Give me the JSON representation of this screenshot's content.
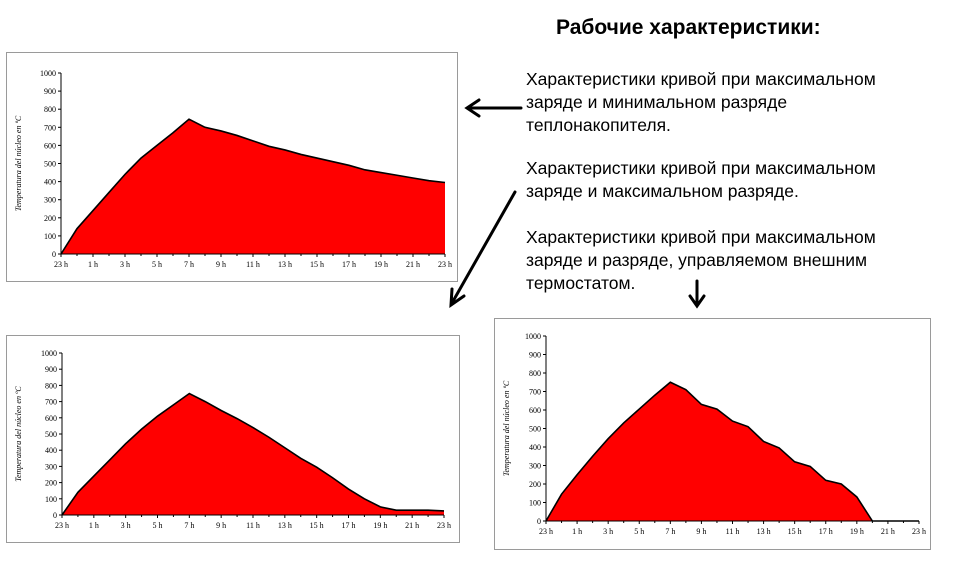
{
  "title": "Рабочие характеристики:",
  "descriptions": [
    "Характеристики кривой при максимальном заряде и минимальном разряде теплонакопителя.",
    "Характеристики кривой при максимальном заряде и максимальном разряде.",
    "Характеристики кривой при максимальном заряде и разряде, управляемом внешним термостатом."
  ],
  "chart_data": [
    {
      "type": "area",
      "ylabel": "Temperatura del núcleo en ºC",
      "ylim": [
        0,
        1000
      ],
      "yticks": [
        0,
        100,
        200,
        300,
        400,
        500,
        600,
        700,
        800,
        900,
        1000
      ],
      "xticks": [
        "23 h",
        "1 h",
        "3 h",
        "5 h",
        "7 h",
        "9 h",
        "11 h",
        "13 h",
        "15 h",
        "17 h",
        "19 h",
        "21 h",
        "23 h"
      ],
      "x": [
        0,
        1,
        2,
        3,
        4,
        5,
        6,
        7,
        8,
        9,
        10,
        11,
        12,
        13,
        14,
        15,
        16,
        17,
        18,
        19,
        20,
        21,
        22,
        23,
        24
      ],
      "values": [
        0,
        140,
        240,
        340,
        440,
        530,
        600,
        670,
        745,
        700,
        680,
        655,
        625,
        595,
        575,
        550,
        530,
        510,
        490,
        465,
        450,
        435,
        420,
        405,
        395
      ],
      "color": "#ff0000"
    },
    {
      "type": "area",
      "ylabel": "Temperatura del núcleo en ºC",
      "ylim": [
        0,
        1000
      ],
      "yticks": [
        0,
        100,
        200,
        300,
        400,
        500,
        600,
        700,
        800,
        900,
        1000
      ],
      "xticks": [
        "23 h",
        "1 h",
        "3 h",
        "5 h",
        "7 h",
        "9 h",
        "11 h",
        "13 h",
        "15 h",
        "17 h",
        "19 h",
        "21 h",
        "23 h"
      ],
      "x": [
        0,
        1,
        2,
        3,
        4,
        5,
        6,
        7,
        8,
        9,
        10,
        11,
        12,
        13,
        14,
        15,
        16,
        17,
        18,
        19,
        20,
        21,
        22,
        23,
        24
      ],
      "values": [
        0,
        140,
        240,
        340,
        440,
        530,
        610,
        680,
        750,
        700,
        645,
        595,
        540,
        480,
        415,
        350,
        295,
        230,
        160,
        100,
        50,
        30,
        30,
        30,
        25
      ],
      "color": "#ff0000"
    },
    {
      "type": "area",
      "ylabel": "Temperatura del núcleo en ºC",
      "ylim": [
        0,
        1000
      ],
      "yticks": [
        0,
        100,
        200,
        300,
        400,
        500,
        600,
        700,
        800,
        900,
        1000
      ],
      "xticks": [
        "23 h",
        "1 h",
        "3 h",
        "5 h",
        "7 h",
        "9 h",
        "11 h",
        "13 h",
        "15 h",
        "17 h",
        "19 h",
        "21 h",
        "23 h"
      ],
      "x": [
        0,
        1,
        2,
        3,
        4,
        5,
        6,
        7,
        8,
        9,
        10,
        11,
        12,
        13,
        14,
        15,
        16,
        17,
        18,
        19,
        20,
        21,
        22,
        23,
        24
      ],
      "values": [
        0,
        145,
        250,
        350,
        445,
        530,
        605,
        680,
        750,
        710,
        630,
        605,
        540,
        510,
        430,
        395,
        320,
        295,
        220,
        200,
        130,
        0,
        0,
        0,
        0
      ],
      "color": "#ff0000"
    }
  ]
}
